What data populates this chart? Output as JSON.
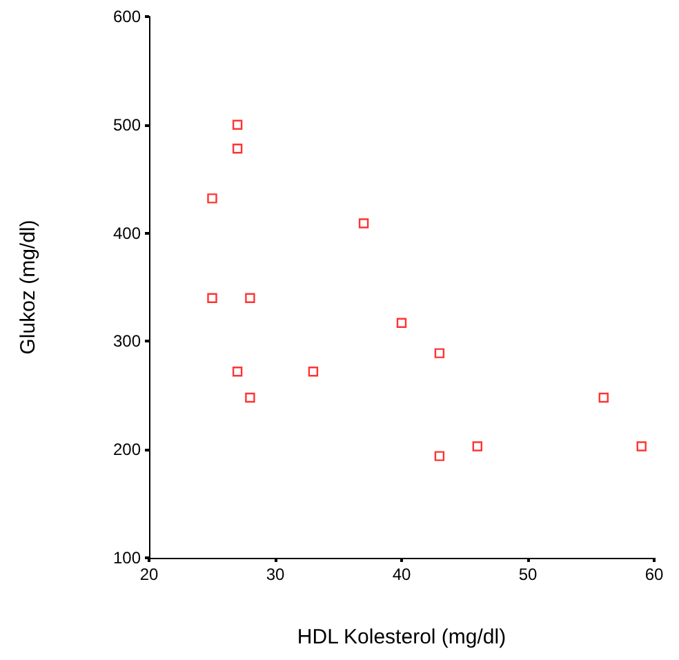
{
  "chart_data": {
    "type": "scatter",
    "xlabel": "HDL Kolesterol (mg/dl)",
    "ylabel": "Glukoz (mg/dl)",
    "x": [
      27,
      27,
      25,
      25,
      28,
      27,
      28,
      33,
      37,
      40,
      43,
      43,
      46,
      56,
      59
    ],
    "series": [
      {
        "color": "#ff0000",
        "values": [
          500,
          478,
          432,
          340,
          340,
          272,
          248,
          272,
          409,
          317,
          289,
          194,
          203,
          248,
          203
        ]
      }
    ],
    "xlim": [
      20,
      60
    ],
    "xticks": [
      20,
      30,
      40,
      50,
      60
    ],
    "ylim": [
      100,
      600
    ],
    "yticks": [
      100,
      200,
      300,
      400,
      500,
      600
    ],
    "marker": "square"
  }
}
